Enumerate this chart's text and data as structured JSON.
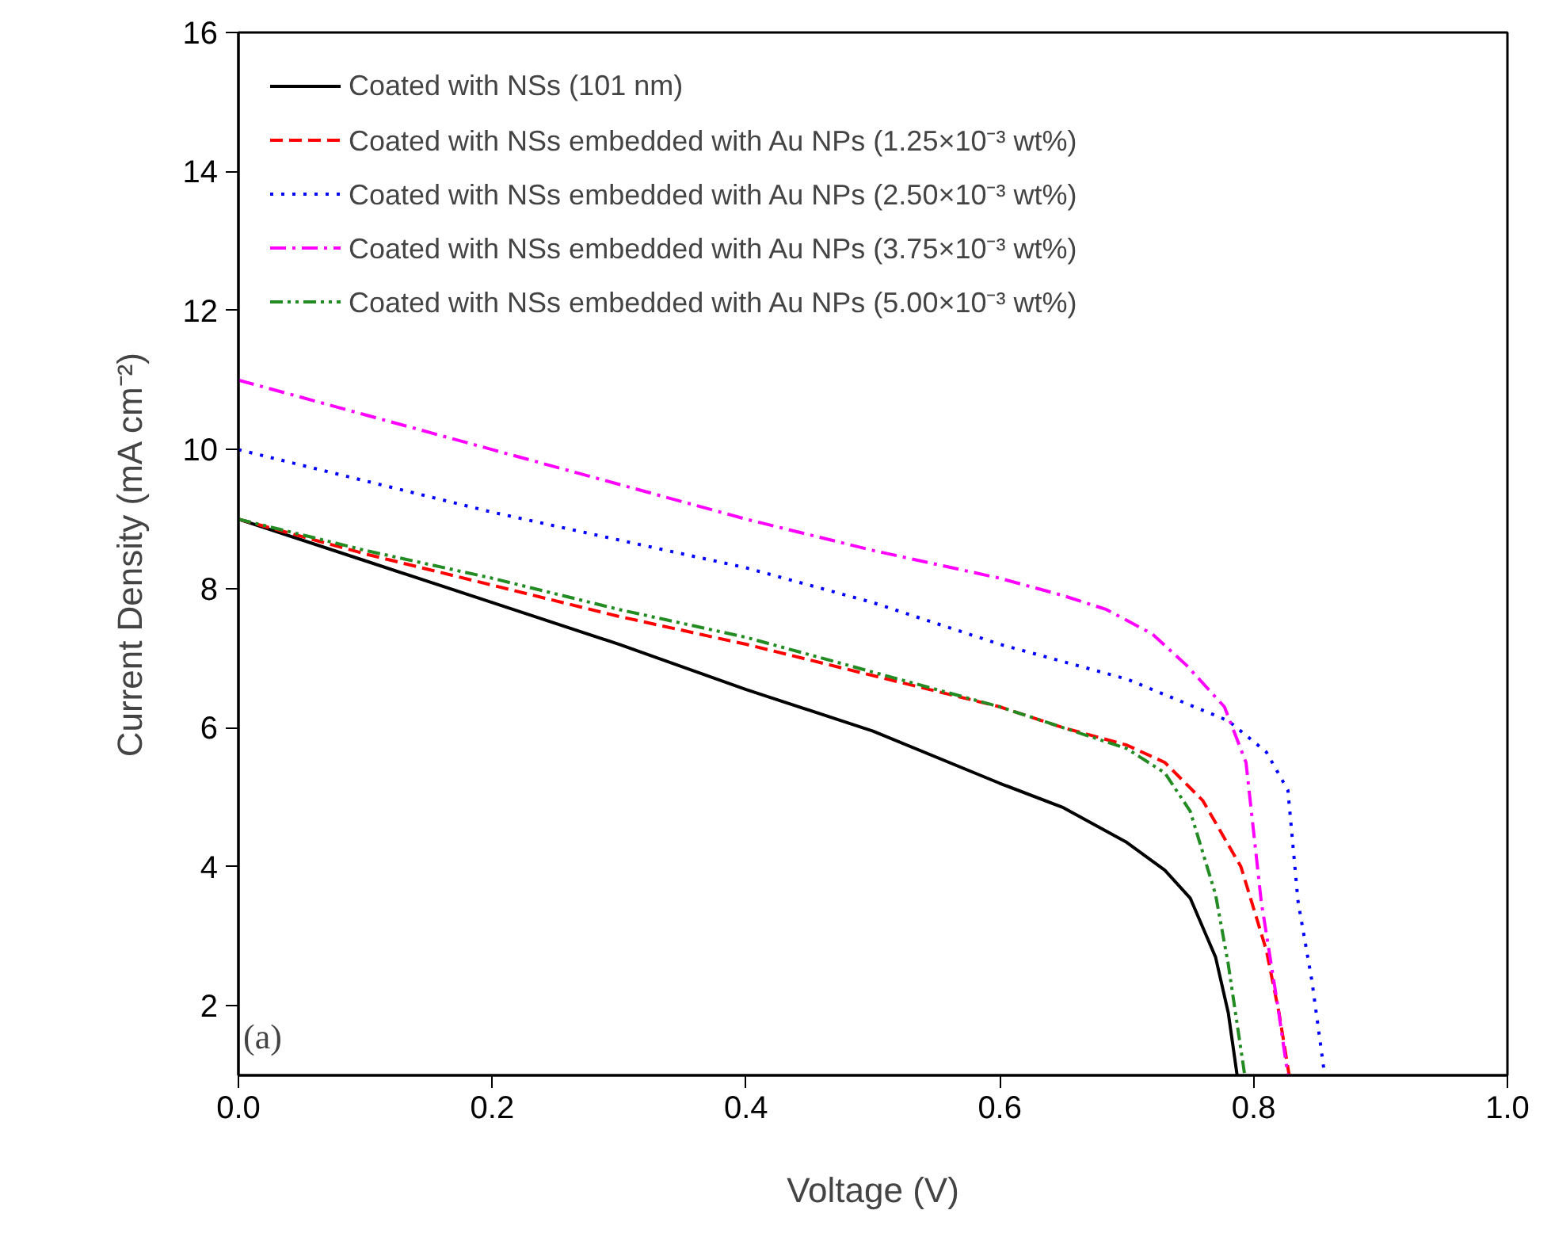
{
  "chart_data": {
    "type": "line",
    "xlabel": "Voltage (V)",
    "ylabel": "Current Density (mA cm⁻²)",
    "annotations": [
      "(a)"
    ],
    "xlim": [
      0,
      1.0
    ],
    "ylim": [
      1,
      16
    ],
    "xticks": [
      "0.0",
      0.2,
      0.4,
      0.6,
      0.8,
      "1.0"
    ],
    "yticks": [
      2,
      4,
      6,
      8,
      10,
      12,
      14,
      16
    ],
    "grid": false,
    "legend": "top left",
    "marker": "none",
    "series": [
      {
        "name": "Coated with NSs (101 nm)",
        "color": "#000000",
        "line_style": "solid",
        "x": [
          0,
          0.1,
          0.2,
          0.3,
          0.4,
          0.5,
          0.6,
          0.65,
          0.7,
          0.73,
          0.75,
          0.77,
          0.78,
          0.787
        ],
        "values": [
          9,
          8.4,
          7.8,
          7.2,
          6.55,
          5.95,
          5.2,
          4.85,
          4.35,
          3.95,
          3.55,
          2.7,
          1.9,
          1.0
        ]
      },
      {
        "name": "Coated with NSs embedded with Au NPs (1.25×10⁻³ wt%)",
        "color": "#ff0000",
        "line_style": "dashed",
        "x": [
          0,
          0.1,
          0.2,
          0.3,
          0.4,
          0.5,
          0.6,
          0.65,
          0.7,
          0.73,
          0.76,
          0.79,
          0.81,
          0.82,
          0.828
        ],
        "values": [
          9,
          8.5,
          8.05,
          7.6,
          7.2,
          6.75,
          6.3,
          6.0,
          5.75,
          5.5,
          4.95,
          4.0,
          2.8,
          1.9,
          1.0
        ]
      },
      {
        "name": "Coated with NSs embedded with Au NPs (2.50×10⁻³ wt%)",
        "color": "#0000ff",
        "line_style": "dotted",
        "x": [
          0,
          0.1,
          0.2,
          0.3,
          0.4,
          0.5,
          0.6,
          0.7,
          0.78,
          0.81,
          0.827,
          0.835,
          0.846,
          0.856
        ],
        "values": [
          10,
          9.55,
          9.1,
          8.7,
          8.3,
          7.8,
          7.2,
          6.7,
          6.1,
          5.65,
          5.1,
          3.5,
          2.35,
          1.0
        ]
      },
      {
        "name": "Coated with NSs embedded with Au NPs (3.75×10⁻³ wt%)",
        "color": "#ff00ff",
        "line_style": "dashdot",
        "x": [
          0,
          0.1,
          0.2,
          0.3,
          0.4,
          0.5,
          0.6,
          0.65,
          0.684,
          0.72,
          0.747,
          0.777,
          0.794,
          0.806,
          0.819,
          0.827
        ],
        "values": [
          11,
          10.5,
          10.0,
          9.5,
          9.0,
          8.55,
          8.15,
          7.9,
          7.7,
          7.35,
          6.9,
          6.3,
          5.5,
          3.5,
          2.0,
          1.0
        ]
      },
      {
        "name": "Coated with NSs embedded with Au NPs (5.00×10⁻³ wt%)",
        "color": "#228b22",
        "line_style": "dashdotdot",
        "x": [
          0,
          0.1,
          0.2,
          0.3,
          0.4,
          0.5,
          0.6,
          0.65,
          0.7,
          0.73,
          0.75,
          0.77,
          0.78,
          0.793
        ],
        "values": [
          9,
          8.55,
          8.15,
          7.7,
          7.3,
          6.8,
          6.3,
          6.0,
          5.7,
          5.35,
          4.8,
          3.6,
          2.6,
          1.0
        ]
      }
    ]
  }
}
